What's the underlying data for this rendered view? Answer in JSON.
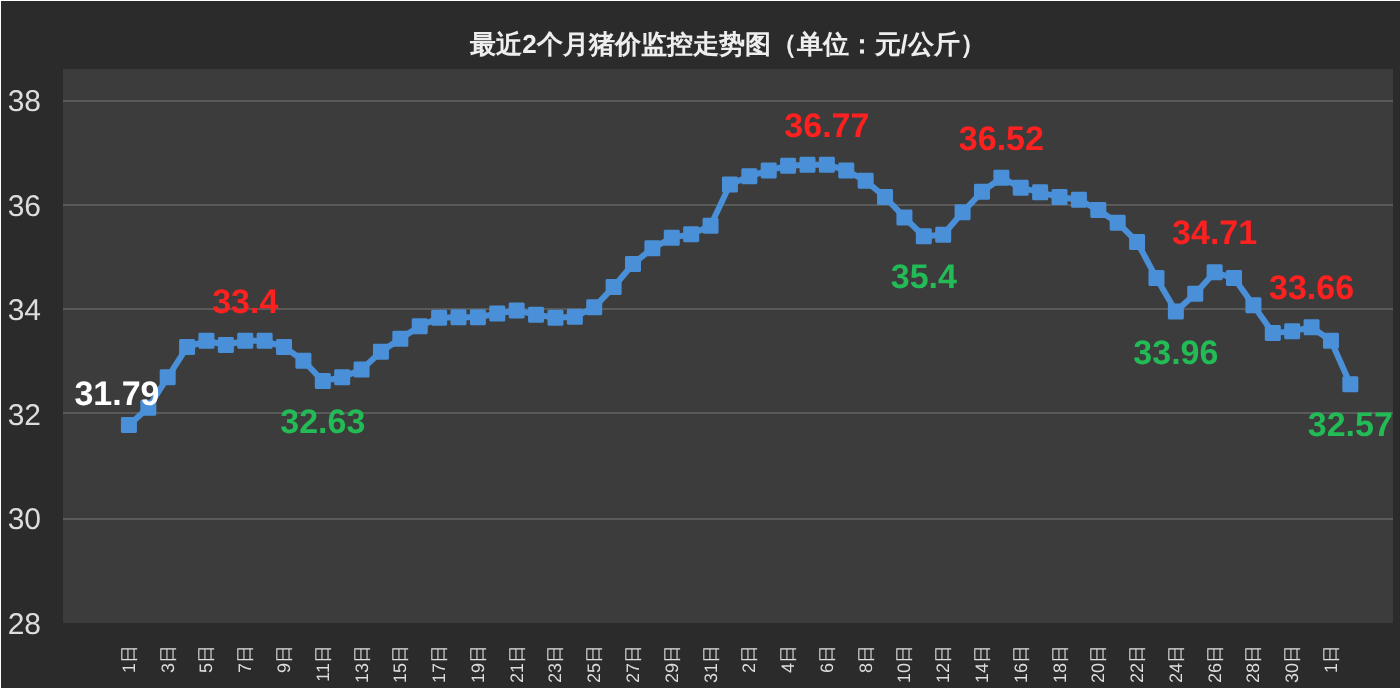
{
  "chart_data": {
    "type": "line",
    "title": "最近2个月猪价监控走势图（单位：元/公斤）",
    "categories": [
      "1日",
      null,
      "3日",
      null,
      "5日",
      null,
      "7日",
      null,
      "9日",
      null,
      "11日",
      null,
      "13日",
      null,
      "15日",
      null,
      "17日",
      null,
      "19日",
      null,
      "21日",
      null,
      "23日",
      null,
      "25日",
      null,
      "27日",
      null,
      "29日",
      null,
      "31日",
      null,
      "2日",
      null,
      "4日",
      null,
      "6日",
      null,
      "8日",
      null,
      "10日",
      null,
      "12日",
      null,
      "14日",
      null,
      "16日",
      null,
      "18日",
      null,
      "20日",
      null,
      "22日",
      null,
      "24日",
      null,
      "26日",
      null,
      "28日",
      null,
      "30日",
      null,
      "1日",
      null
    ],
    "series": [
      {
        "color": "#4a90d9",
        "values": [
          31.79,
          32.12,
          32.7,
          33.28,
          33.4,
          33.32,
          33.4,
          33.4,
          33.28,
          33.02,
          32.63,
          32.7,
          32.85,
          33.19,
          33.44,
          33.68,
          33.84,
          33.85,
          33.85,
          33.92,
          33.98,
          33.9,
          33.84,
          33.86,
          34.04,
          34.43,
          34.87,
          35.17,
          35.37,
          35.44,
          35.6,
          36.39,
          36.55,
          36.66,
          36.75,
          36.77,
          36.77,
          36.66,
          36.46,
          36.15,
          35.76,
          35.4,
          35.43,
          35.86,
          36.25,
          36.52,
          36.33,
          36.24,
          36.15,
          36.1,
          35.9,
          35.66,
          35.29,
          34.6,
          33.96,
          34.3,
          34.71,
          34.6,
          34.08,
          33.55,
          33.58,
          33.66,
          33.4,
          32.57
        ],
        "value_labels": [
          "31.79",
          null,
          null,
          null,
          null,
          null,
          "33.4",
          null,
          null,
          null,
          "32.63",
          null,
          null,
          null,
          null,
          null,
          null,
          null,
          null,
          null,
          null,
          null,
          null,
          null,
          null,
          null,
          null,
          null,
          null,
          null,
          null,
          null,
          null,
          null,
          null,
          null,
          "36.77",
          null,
          null,
          null,
          null,
          "35.4",
          null,
          null,
          null,
          "36.52",
          null,
          null,
          null,
          null,
          null,
          null,
          null,
          null,
          "33.96",
          null,
          "34.71",
          null,
          null,
          null,
          null,
          "33.66",
          null,
          "32.57"
        ]
      }
    ],
    "ylim": [
      28,
      38.6
    ],
    "yticks": [
      28,
      30,
      32,
      34,
      36,
      38
    ],
    "grid": "y",
    "marker": "square",
    "line_style": "solid"
  }
}
